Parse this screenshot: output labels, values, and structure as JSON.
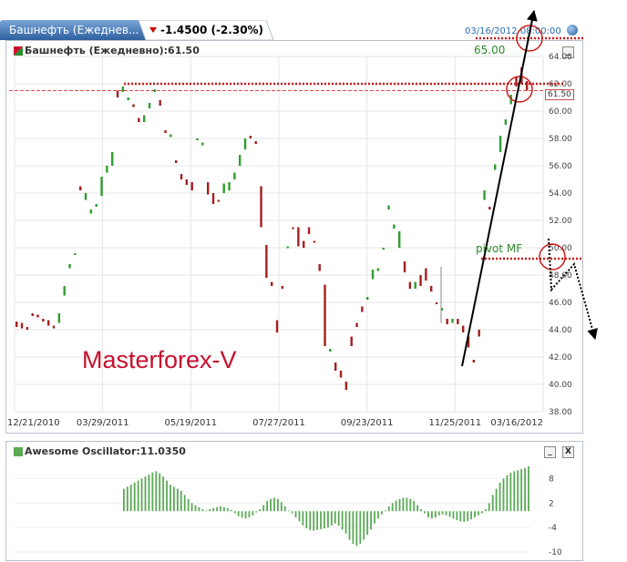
{
  "tab": {
    "title": "Башнефть (Ежеднев...",
    "change": "-1.4500 (-2.30%)",
    "colors": {
      "tab_top": "#6d9bd0",
      "tab_bottom": "#2f5f9e"
    }
  },
  "top_right_date": "03/16/2012 08:00:00",
  "main_panel": {
    "header": "Башнефть (Ежедневно):61.50",
    "minimize_label": "_"
  },
  "osc_panel": {
    "header": "Awesome Oscillator:11.0350",
    "minimize_label": "_",
    "close_label": "X"
  },
  "annotations": {
    "watermark": "Masterforex-V",
    "target_label": "65.00",
    "pivot_label": "pivot MF",
    "price_badge": "61.50"
  },
  "colors": {
    "up": "#2e9e2e",
    "down": "#a51f1f",
    "osc": "#5aaa55",
    "level_line": "#cc1a1a",
    "arrow": "#000000"
  },
  "chart_data": [
    {
      "type": "candlestick",
      "title": "Башнефть (Ежедневно):61.50",
      "x_tick_labels": [
        "12/21/2010",
        "03/29/2011",
        "05/19/2011",
        "07/27/2011",
        "09/23/2011",
        "11/25/2011",
        "03/16/2012"
      ],
      "ylim": [
        38,
        64
      ],
      "y_ticks": [
        38,
        40,
        42,
        44,
        46,
        48,
        50,
        52,
        54,
        56,
        58,
        60,
        62,
        64
      ],
      "y_tick_labels": [
        "38.00",
        "40.00",
        "42.00",
        "44.00",
        "46.00",
        "48.00",
        "50.00",
        "52.00",
        "54.00",
        "56.00",
        "58.00",
        "60.00",
        "62.00",
        "64.00"
      ],
      "last_price": 61.5,
      "annotated_levels": [
        62.0,
        49.2
      ],
      "candles": [
        {
          "o": 44.6,
          "c": 44.2
        },
        {
          "o": 44.5,
          "c": 44.1
        },
        {
          "o": 44.2,
          "c": 44.0
        },
        {
          "o": 45.2,
          "c": 45.0
        },
        {
          "o": 45.1,
          "c": 44.9
        },
        {
          "o": 44.8,
          "c": 44.6
        },
        {
          "o": 44.7,
          "c": 44.3
        },
        {
          "o": 44.3,
          "c": 44.1
        },
        {
          "o": 44.5,
          "c": 45.2
        },
        {
          "o": 46.5,
          "c": 47.2
        },
        {
          "o": 48.5,
          "c": 48.8
        },
        {
          "o": 49.5,
          "c": 49.6
        },
        {
          "o": 54.5,
          "c": 54.2
        },
        {
          "o": 53.5,
          "c": 54.0
        },
        {
          "o": 52.5,
          "c": 52.8
        },
        {
          "o": 53.0,
          "c": 53.2
        },
        {
          "o": 53.8,
          "c": 55.2
        },
        {
          "o": 55.5,
          "c": 56.0
        },
        {
          "o": 56.0,
          "c": 57.0
        },
        {
          "o": 61.5,
          "c": 61.0
        },
        {
          "o": 61.4,
          "c": 61.8
        },
        {
          "o": 60.8,
          "c": 61.0
        },
        {
          "o": 60.5,
          "c": 60.3
        },
        {
          "o": 59.5,
          "c": 59.2
        },
        {
          "o": 59.2,
          "c": 59.7
        },
        {
          "o": 60.2,
          "c": 60.6
        },
        {
          "o": 61.4,
          "c": 61.6
        },
        {
          "o": 60.8,
          "c": 60.4
        },
        {
          "o": 58.6,
          "c": 58.4
        },
        {
          "o": 58.1,
          "c": 58.3
        },
        {
          "o": 56.4,
          "c": 56.2
        },
        {
          "o": 55.4,
          "c": 55.0
        },
        {
          "o": 55.0,
          "c": 54.6
        },
        {
          "o": 54.8,
          "c": 54.2
        },
        {
          "o": 57.9,
          "c": 58.0
        },
        {
          "o": 57.5,
          "c": 57.7
        },
        {
          "o": 54.8,
          "c": 53.9
        },
        {
          "o": 54.0,
          "c": 53.2
        },
        {
          "o": 53.5,
          "c": 53.4
        },
        {
          "o": 54.0,
          "c": 54.7
        },
        {
          "o": 54.2,
          "c": 54.8
        },
        {
          "o": 55.0,
          "c": 55.5
        },
        {
          "o": 56.0,
          "c": 56.8
        },
        {
          "o": 57.2,
          "c": 58.0
        },
        {
          "o": 58.2,
          "c": 58.0
        },
        {
          "o": 57.8,
          "c": 57.6
        },
        {
          "o": 54.5,
          "c": 51.5
        },
        {
          "o": 50.2,
          "c": 47.8
        },
        {
          "o": 47.5,
          "c": 47.2
        },
        {
          "o": 44.7,
          "c": 43.8
        },
        {
          "o": 47.2,
          "c": 47.0
        },
        {
          "o": 50.0,
          "c": 50.1
        },
        {
          "o": 51.5,
          "c": 51.4
        },
        {
          "o": 51.5,
          "c": 50.1
        },
        {
          "o": 50.5,
          "c": 50.0
        },
        {
          "o": 51.5,
          "c": 51.0
        },
        {
          "o": 50.5,
          "c": 50.4
        },
        {
          "o": 48.8,
          "c": 48.3
        },
        {
          "o": 47.3,
          "c": 42.8
        },
        {
          "o": 42.4,
          "c": 42.6
        },
        {
          "o": 41.6,
          "c": 41.0
        },
        {
          "o": 41.0,
          "c": 40.5
        },
        {
          "o": 40.2,
          "c": 39.6
        },
        {
          "o": 43.5,
          "c": 42.8
        },
        {
          "o": 44.5,
          "c": 44.2
        },
        {
          "o": 45.7,
          "c": 45.3
        },
        {
          "o": 46.2,
          "c": 46.4
        },
        {
          "o": 47.7,
          "c": 48.4
        },
        {
          "o": 48.3,
          "c": 48.5
        },
        {
          "o": 50.0,
          "c": 50.0
        },
        {
          "o": 52.8,
          "c": 53.1
        },
        {
          "o": 51.4,
          "c": 51.7
        },
        {
          "o": 50.0,
          "c": 51.2
        },
        {
          "o": 49.0,
          "c": 48.2
        },
        {
          "o": 47.5,
          "c": 47.0
        },
        {
          "o": 47.0,
          "c": 47.5
        },
        {
          "o": 48.0,
          "c": 47.2
        },
        {
          "o": 48.5,
          "c": 47.6
        },
        {
          "o": 47.2,
          "c": 46.8
        },
        {
          "o": 46.0,
          "c": 45.9
        },
        {
          "o": 45.4,
          "c": 45.6
        },
        {
          "o": 44.8,
          "c": 44.4
        },
        {
          "o": 44.5,
          "c": 44.8
        },
        {
          "o": 44.8,
          "c": 44.4
        },
        {
          "o": 44.3,
          "c": 43.8
        },
        {
          "o": 43.5,
          "c": 42.7
        },
        {
          "o": 41.8,
          "c": 41.6
        },
        {
          "o": 44.0,
          "c": 43.5
        },
        {
          "o": 53.5,
          "c": 54.2
        },
        {
          "o": 53.0,
          "c": 52.8
        },
        {
          "o": 55.7,
          "c": 56.1
        },
        {
          "o": 57.0,
          "c": 58.2
        },
        {
          "o": 59.0,
          "c": 59.4
        },
        {
          "o": 60.5,
          "c": 61.2
        },
        {
          "o": 62.5,
          "c": 61.8
        },
        {
          "o": 63.2,
          "c": 62.0
        },
        {
          "o": 62.2,
          "c": 61.5
        }
      ]
    },
    {
      "type": "bar",
      "title": "Awesome Oscillator:11.0350",
      "ylim": [
        -10,
        11
      ],
      "y_ticks": [
        8,
        2,
        -4,
        -10
      ],
      "y_tick_labels": [
        "8",
        "2",
        "-4",
        "-10"
      ],
      "values": [
        0,
        0,
        0,
        0,
        0,
        0,
        0,
        0,
        0,
        0,
        0,
        0,
        0,
        0,
        0,
        0,
        0,
        0,
        0,
        0,
        0,
        0,
        0,
        0,
        0,
        0,
        0,
        0,
        0,
        0,
        5.5,
        6.0,
        6.5,
        7.0,
        7.5,
        8.0,
        8.5,
        9.0,
        9.5,
        9.8,
        9.3,
        8.5,
        7.5,
        6.5,
        6.0,
        5.5,
        5.0,
        4.0,
        3.0,
        2.0,
        1.5,
        1.0,
        0.5,
        0.2,
        0.5,
        0.8,
        1.0,
        1.2,
        1.0,
        0.7,
        0.3,
        -0.5,
        -1.2,
        -1.6,
        -1.8,
        -1.5,
        -1.0,
        -0.3,
        0.5,
        1.5,
        2.5,
        3.0,
        3.3,
        3.0,
        2.2,
        1.2,
        0.2,
        -0.5,
        -1.5,
        -2.5,
        -3.5,
        -4.2,
        -4.6,
        -4.8,
        -4.6,
        -4.4,
        -4.2,
        -4.0,
        -3.5,
        -3.0,
        -3.6,
        -4.5,
        -5.5,
        -7.0,
        -8.0,
        -8.5,
        -8.0,
        -7.0,
        -5.8,
        -4.5,
        -3.0,
        -1.8,
        -0.8,
        0.2,
        1.2,
        2.0,
        2.6,
        3.0,
        3.3,
        3.3,
        3.0,
        2.5,
        1.5,
        0.5,
        -0.5,
        -1.5,
        -1.8,
        -1.6,
        -1.0,
        -0.8,
        -1.0,
        -1.4,
        -1.8,
        -2.2,
        -2.5,
        -2.6,
        -2.4,
        -2.0,
        -1.5,
        -1.0,
        -0.5,
        0.5,
        2.0,
        4.0,
        5.5,
        7.0,
        8.0,
        8.8,
        9.4,
        9.8,
        10.0,
        10.3,
        10.6,
        11.0
      ]
    }
  ]
}
